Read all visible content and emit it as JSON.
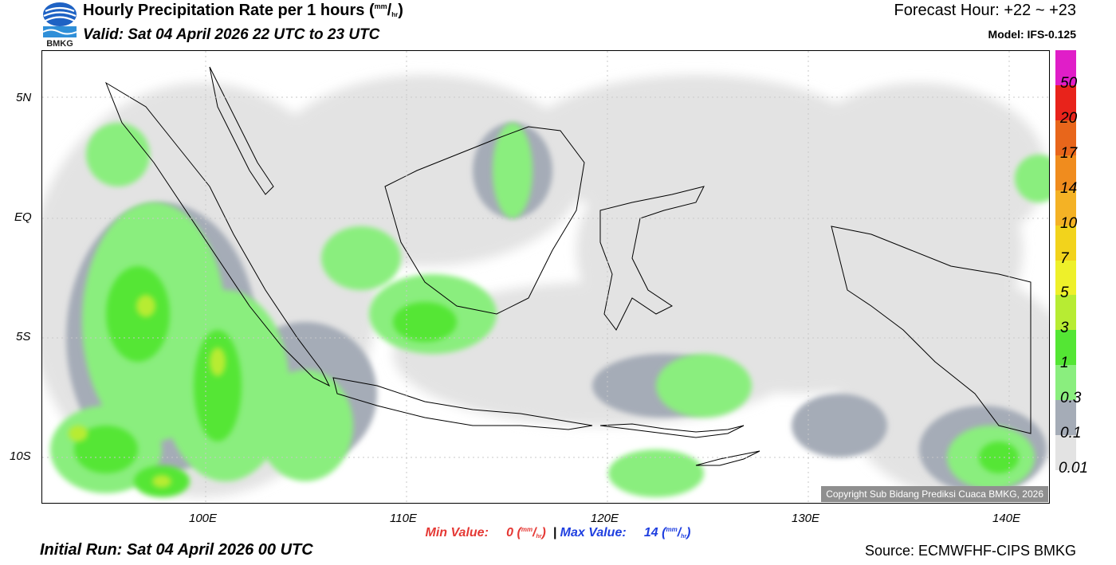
{
  "header": {
    "title_main": "Hourly Precipitation Rate per 1 hours (",
    "unit_num": "mm",
    "unit_den": "hr",
    "title_close": ")",
    "valid": "Valid: Sat 04 April 2026 22 UTC to 23 UTC",
    "forecast_hour": "Forecast Hour: +22 ~ +23",
    "model": "Model: IFS-0.125"
  },
  "logo": {
    "icon": "bmkg-logo-icon",
    "text": "BMKG"
  },
  "axes": {
    "lat_ticks": [
      "5N",
      "EQ",
      "5S",
      "10S"
    ],
    "lon_ticks": [
      "100E",
      "110E",
      "120E",
      "130E",
      "140E"
    ]
  },
  "colorbar": {
    "labels": [
      "50",
      "20",
      "17",
      "14",
      "10",
      "7",
      "5",
      "3",
      "1",
      "0.3",
      "0.1",
      "0.01"
    ],
    "colors": [
      "#e01ec8",
      "#e8231b",
      "#e8661b",
      "#f08c1e",
      "#f4b225",
      "#f2d31c",
      "#eef02a",
      "#b7ec33",
      "#54e634",
      "#8aee7e",
      "#a5acb7",
      "#e3e3e3"
    ]
  },
  "footer": {
    "min_label": "Min Value:",
    "min_value": "0",
    "separator": "|",
    "max_label": "Max Value:",
    "max_value": "14",
    "unit_num": "mm",
    "unit_den": "hr",
    "initial_run": "Initial Run: Sat 04 April 2026 00 UTC",
    "source": "Source: ECMWFHF-CIPS BMKG",
    "copyright": "Copyright Sub Bidang Prediksi Cuaca BMKG, 2026"
  }
}
